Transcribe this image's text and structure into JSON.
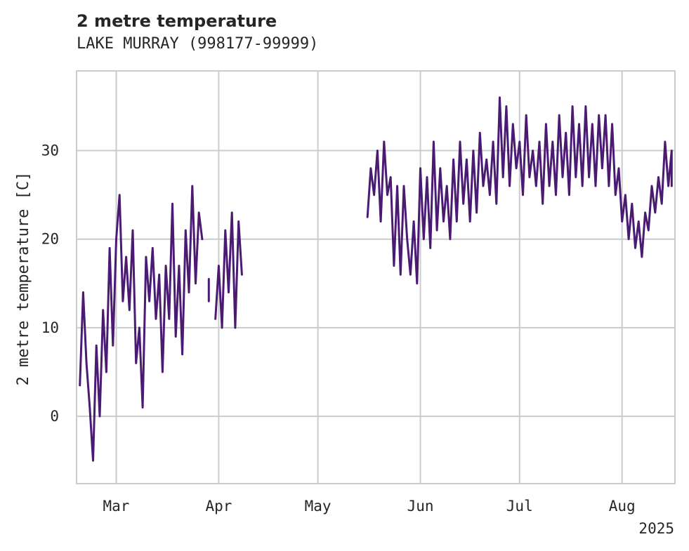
{
  "chart_data": {
    "type": "line",
    "title": "2 metre temperature",
    "subtitle": "LAKE MURRAY (998177-99999)",
    "ylabel": "2 metre temperature [C]",
    "xlabel": "",
    "x_ticks": [
      {
        "date": "2025-03-01",
        "label": "Mar"
      },
      {
        "date": "2025-04-01",
        "label": "Apr"
      },
      {
        "date": "2025-05-01",
        "label": "May"
      },
      {
        "date": "2025-06-01",
        "label": "Jun"
      },
      {
        "date": "2025-07-01",
        "label": "Jul"
      },
      {
        "date": "2025-08-01",
        "label": "Aug"
      }
    ],
    "x_offset_label": "2025",
    "y_ticks": [
      0,
      10,
      20,
      30
    ],
    "xlim": [
      "2025-02-17",
      "2025-08-17"
    ],
    "ylim": [
      -7.6,
      39
    ],
    "grid": true,
    "colors": {
      "line": "#4b1b73",
      "grid": "#cccccc",
      "spine": "#cccccc"
    },
    "series": [
      {
        "segments": [
          [
            [
              "2025-02-18",
              3.5
            ],
            [
              "2025-02-19",
              14
            ],
            [
              "2025-02-20",
              6
            ],
            [
              "2025-02-21",
              1
            ],
            [
              "2025-02-22",
              -5
            ],
            [
              "2025-02-23",
              8
            ],
            [
              "2025-02-24",
              0
            ],
            [
              "2025-02-25",
              12
            ],
            [
              "2025-02-26",
              5
            ],
            [
              "2025-02-27",
              19
            ],
            [
              "2025-02-28",
              8
            ],
            [
              "2025-03-01",
              20
            ],
            [
              "2025-03-02",
              25
            ],
            [
              "2025-03-03",
              13
            ],
            [
              "2025-03-04",
              18
            ],
            [
              "2025-03-05",
              12
            ],
            [
              "2025-03-06",
              21
            ],
            [
              "2025-03-07",
              6
            ],
            [
              "2025-03-08",
              10
            ],
            [
              "2025-03-09",
              1
            ],
            [
              "2025-03-10",
              18
            ],
            [
              "2025-03-11",
              13
            ],
            [
              "2025-03-12",
              19
            ],
            [
              "2025-03-13",
              11
            ],
            [
              "2025-03-14",
              16
            ],
            [
              "2025-03-15",
              5
            ],
            [
              "2025-03-16",
              17
            ],
            [
              "2025-03-17",
              11
            ],
            [
              "2025-03-18",
              24
            ],
            [
              "2025-03-19",
              9
            ],
            [
              "2025-03-20",
              17
            ],
            [
              "2025-03-21",
              7
            ],
            [
              "2025-03-22",
              21
            ],
            [
              "2025-03-23",
              14
            ],
            [
              "2025-03-24",
              26
            ],
            [
              "2025-03-25",
              15
            ],
            [
              "2025-03-26",
              23
            ],
            [
              "2025-03-27",
              20
            ]
          ],
          [
            [
              "2025-03-29",
              13
            ],
            [
              "2025-03-29",
              15.5
            ]
          ],
          [
            [
              "2025-03-31",
              11
            ],
            [
              "2025-04-01",
              17
            ],
            [
              "2025-04-02",
              10
            ],
            [
              "2025-04-03",
              21
            ],
            [
              "2025-04-04",
              14
            ],
            [
              "2025-04-05",
              23
            ],
            [
              "2025-04-06",
              10
            ],
            [
              "2025-04-07",
              22
            ],
            [
              "2025-04-08",
              16
            ]
          ],
          [
            [
              "2025-05-16",
              22.5
            ],
            [
              "2025-05-17",
              28
            ],
            [
              "2025-05-18",
              25
            ],
            [
              "2025-05-19",
              30
            ],
            [
              "2025-05-20",
              22
            ],
            [
              "2025-05-21",
              31
            ],
            [
              "2025-05-22",
              25
            ],
            [
              "2025-05-23",
              27
            ],
            [
              "2025-05-24",
              17
            ],
            [
              "2025-05-25",
              26
            ],
            [
              "2025-05-26",
              16
            ],
            [
              "2025-05-27",
              26
            ],
            [
              "2025-05-28",
              20
            ],
            [
              "2025-05-29",
              16
            ],
            [
              "2025-05-30",
              22
            ],
            [
              "2025-05-31",
              15
            ],
            [
              "2025-06-01",
              28
            ],
            [
              "2025-06-02",
              20
            ],
            [
              "2025-06-03",
              27
            ],
            [
              "2025-06-04",
              19
            ],
            [
              "2025-06-05",
              31
            ],
            [
              "2025-06-06",
              21
            ],
            [
              "2025-06-07",
              28
            ],
            [
              "2025-06-08",
              22
            ],
            [
              "2025-06-09",
              26
            ],
            [
              "2025-06-10",
              20
            ],
            [
              "2025-06-11",
              29
            ],
            [
              "2025-06-12",
              22
            ],
            [
              "2025-06-13",
              31
            ],
            [
              "2025-06-14",
              24
            ],
            [
              "2025-06-15",
              29
            ],
            [
              "2025-06-16",
              22
            ],
            [
              "2025-06-17",
              30
            ],
            [
              "2025-06-18",
              23
            ],
            [
              "2025-06-19",
              32
            ],
            [
              "2025-06-20",
              26
            ],
            [
              "2025-06-21",
              29
            ],
            [
              "2025-06-22",
              25
            ],
            [
              "2025-06-23",
              31
            ],
            [
              "2025-06-24",
              24
            ],
            [
              "2025-06-25",
              36
            ],
            [
              "2025-06-26",
              27
            ],
            [
              "2025-06-27",
              35
            ],
            [
              "2025-06-28",
              26
            ],
            [
              "2025-06-29",
              33
            ],
            [
              "2025-06-30",
              28
            ],
            [
              "2025-07-01",
              31
            ],
            [
              "2025-07-02",
              25
            ],
            [
              "2025-07-03",
              34
            ],
            [
              "2025-07-04",
              27
            ],
            [
              "2025-07-05",
              30
            ],
            [
              "2025-07-06",
              26
            ],
            [
              "2025-07-07",
              31
            ],
            [
              "2025-07-08",
              24
            ],
            [
              "2025-07-09",
              33
            ],
            [
              "2025-07-10",
              26
            ],
            [
              "2025-07-11",
              31
            ],
            [
              "2025-07-12",
              25
            ],
            [
              "2025-07-13",
              34
            ],
            [
              "2025-07-14",
              27
            ],
            [
              "2025-07-15",
              32
            ],
            [
              "2025-07-16",
              25
            ],
            [
              "2025-07-17",
              35
            ],
            [
              "2025-07-18",
              27
            ],
            [
              "2025-07-19",
              33
            ],
            [
              "2025-07-20",
              26
            ],
            [
              "2025-07-21",
              35
            ],
            [
              "2025-07-22",
              27
            ],
            [
              "2025-07-23",
              33
            ],
            [
              "2025-07-24",
              26
            ],
            [
              "2025-07-25",
              34
            ],
            [
              "2025-07-26",
              28
            ],
            [
              "2025-07-27",
              34
            ],
            [
              "2025-07-28",
              26
            ],
            [
              "2025-07-29",
              33
            ],
            [
              "2025-07-30",
              25
            ],
            [
              "2025-07-31",
              28
            ],
            [
              "2025-08-01",
              22
            ],
            [
              "2025-08-02",
              25
            ],
            [
              "2025-08-03",
              20
            ],
            [
              "2025-08-04",
              24
            ],
            [
              "2025-08-05",
              19
            ],
            [
              "2025-08-06",
              22
            ],
            [
              "2025-08-07",
              18
            ],
            [
              "2025-08-08",
              23
            ],
            [
              "2025-08-09",
              21
            ],
            [
              "2025-08-10",
              26
            ],
            [
              "2025-08-11",
              23
            ],
            [
              "2025-08-12",
              27
            ],
            [
              "2025-08-13",
              24
            ],
            [
              "2025-08-14",
              31
            ],
            [
              "2025-08-15",
              26
            ],
            [
              "2025-08-16",
              30
            ],
            [
              "2025-08-16",
              26
            ]
          ]
        ]
      }
    ]
  }
}
